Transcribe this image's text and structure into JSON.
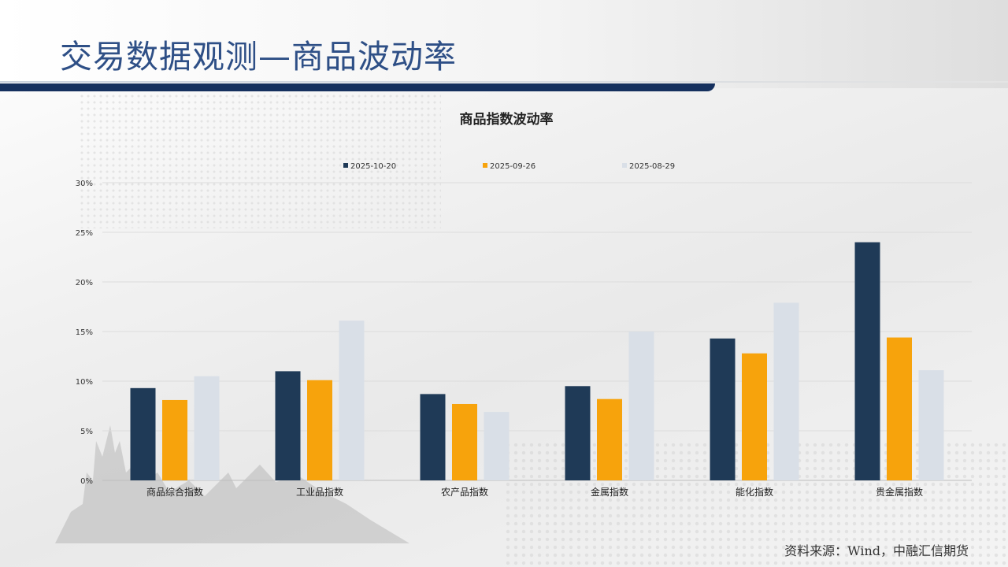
{
  "page": {
    "title": "交易数据观测—商品波动率",
    "source": "资料来源：Wind，中融汇信期货"
  },
  "colors": {
    "title": "#2e4f86",
    "header_bar": "#15305e",
    "series": [
      "#1f3a57",
      "#f7a30c",
      "#d9dfe7"
    ]
  },
  "chart_data": {
    "type": "bar",
    "title": "商品指数波动率",
    "categories": [
      "商品综合指数",
      "工业品指数",
      "农产品指数",
      "金属指数",
      "能化指数",
      "贵金属指数"
    ],
    "series": [
      {
        "name": "2025-10-20",
        "values": [
          9.3,
          11.0,
          8.7,
          9.5,
          14.3,
          24.0
        ]
      },
      {
        "name": "2025-09-26",
        "values": [
          8.1,
          10.1,
          7.7,
          8.2,
          12.8,
          14.4
        ]
      },
      {
        "name": "2025-08-29",
        "values": [
          10.5,
          16.1,
          6.9,
          15.0,
          17.9,
          11.1
        ]
      }
    ],
    "ylim": [
      0,
      30
    ],
    "yticks": [
      "0%",
      "5%",
      "10%",
      "15%",
      "20%",
      "25%",
      "30%"
    ],
    "ytick_values": [
      0,
      5,
      10,
      15,
      20,
      25,
      30
    ],
    "legend_position": "top-center",
    "grid": true
  }
}
